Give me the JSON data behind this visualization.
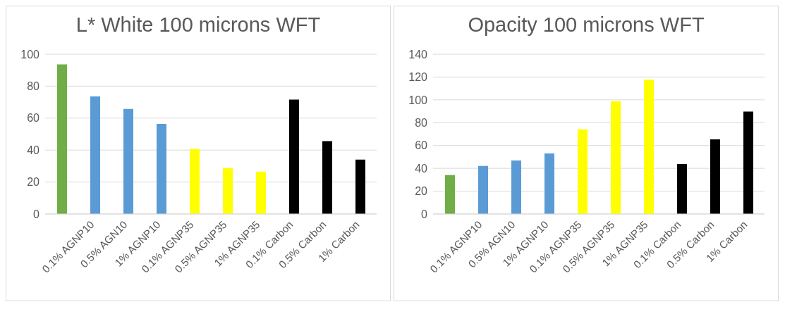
{
  "chart_data": [
    {
      "type": "bar",
      "title": "L* White 100 microns WFT",
      "categories": [
        null,
        "0.1% AGNP10",
        "0.5% AGN10",
        "1% AGNP10",
        "0.1% AGNP35",
        "0.5% AGNP35",
        "1% AGNP35",
        "0.1% Carbon",
        "0.5% Carbon",
        "1% Carbon"
      ],
      "values": [
        93.6,
        73.6,
        65.8,
        56.4,
        40.8,
        28.6,
        26.5,
        71.6,
        45.6,
        34
      ],
      "colors": [
        "#70ad47",
        "#5b9bd5",
        "#5b9bd5",
        "#5b9bd5",
        "#ffff00",
        "#ffff00",
        "#ffff00",
        "#000000",
        "#000000",
        "#000000"
      ],
      "ylim": [
        0,
        100
      ],
      "yticks": [
        0,
        20,
        40,
        60,
        80,
        100
      ],
      "grid": "y"
    },
    {
      "type": "bar",
      "title": "Opacity 100 microns WFT",
      "categories": [
        null,
        "0.1% AGNP10",
        "0.5% AGN10",
        "1% AGNP10",
        "0.1% AGNP35",
        "0.5% AGNP35",
        "1% AGNP35",
        "0.1% Carbon",
        "0.5% Carbon",
        "1% Carbon"
      ],
      "values": [
        34.1,
        42.1,
        46.8,
        53.1,
        74.1,
        98.7,
        117.7,
        43.8,
        65.4,
        89.7
      ],
      "colors": [
        "#70ad47",
        "#5b9bd5",
        "#5b9bd5",
        "#5b9bd5",
        "#ffff00",
        "#ffff00",
        "#ffff00",
        "#000000",
        "#000000",
        "#000000"
      ],
      "ylim": [
        0,
        140
      ],
      "yticks": [
        0,
        20,
        40,
        60,
        80,
        100,
        120,
        140
      ],
      "grid": "y"
    }
  ]
}
